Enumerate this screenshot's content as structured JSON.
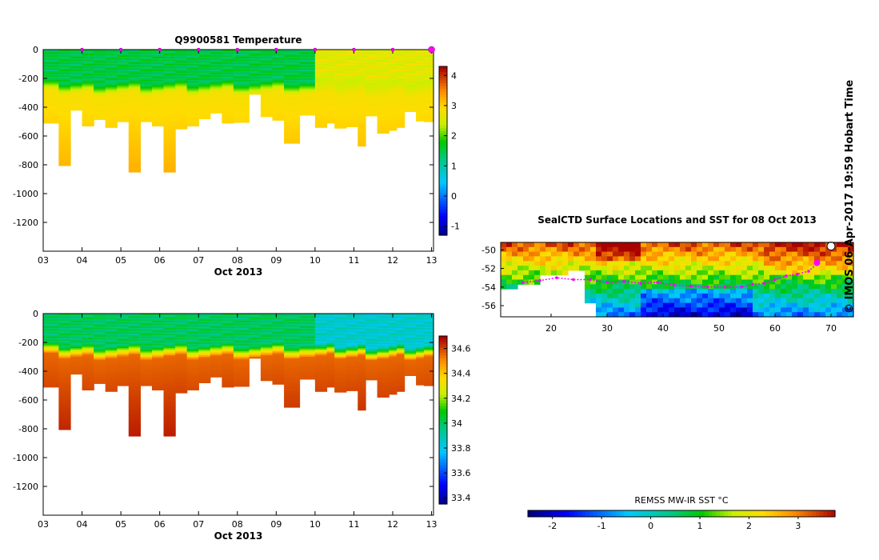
{
  "credit": "©  IMOS 06-Apr-2017 19:59 Hobart Time",
  "chart_data": [
    {
      "id": "temperature",
      "type": "heatmap",
      "title": "Q9900581  Temperature",
      "xlabel": "Oct 2013",
      "x_ticks": [
        "03",
        "04",
        "05",
        "06",
        "07",
        "08",
        "09",
        "10",
        "11",
        "12",
        "13"
      ],
      "y_ticks": [
        "0",
        "-200",
        "-400",
        "-600",
        "-800",
        "-1000",
        "-1200"
      ],
      "xlim": [
        3,
        13.05
      ],
      "ylim": [
        -1400,
        0
      ],
      "colorbar": {
        "ticks": [
          "4",
          "3",
          "2",
          "1",
          "0",
          "-1"
        ],
        "range": [
          -1.3,
          4.3
        ]
      },
      "profile_days": [
        3.0,
        3.4,
        3.7,
        4.0,
        4.3,
        4.6,
        4.9,
        5.2,
        5.5,
        5.8,
        6.1,
        6.4,
        6.7,
        7.0,
        7.3,
        7.6,
        7.9,
        8.3,
        8.6,
        8.9,
        9.2,
        9.6,
        10.0,
        10.3,
        10.5,
        10.8,
        11.1,
        11.3,
        11.6,
        11.9,
        12.1,
        12.3,
        12.6,
        12.8
      ],
      "profile_max_depth": [
        510,
        805,
        420,
        530,
        485,
        540,
        500,
        850,
        500,
        530,
        850,
        550,
        530,
        480,
        440,
        510,
        505,
        310,
        465,
        490,
        650,
        455,
        540,
        510,
        545,
        535,
        670,
        460,
        580,
        560,
        540,
        430,
        495,
        500
      ],
      "surface_markers_days": [
        4.0,
        5.0,
        6.0,
        7.0,
        8.0,
        9.0,
        10.0,
        11.0,
        12.0,
        13.0
      ],
      "surface_value": 1.3,
      "late_surface_value": 2.4,
      "deep_value": 2.8
    },
    {
      "id": "salinity",
      "type": "heatmap",
      "title": "",
      "xlabel": "Oct 2013",
      "x_ticks": [
        "03",
        "04",
        "05",
        "06",
        "07",
        "08",
        "09",
        "10",
        "11",
        "12",
        "13"
      ],
      "y_ticks": [
        "0",
        "-200",
        "-400",
        "-600",
        "-800",
        "-1000",
        "-1200"
      ],
      "xlim": [
        3,
        13.05
      ],
      "ylim": [
        -1400,
        0
      ],
      "colorbar": {
        "ticks": [
          "34.6",
          "34.4",
          "34.2",
          "34",
          "33.8",
          "33.6",
          "33.4"
        ],
        "range": [
          33.35,
          34.7
        ]
      },
      "profile_days": [
        3.0,
        3.4,
        3.7,
        4.0,
        4.3,
        4.6,
        4.9,
        5.2,
        5.5,
        5.8,
        6.1,
        6.4,
        6.7,
        7.0,
        7.3,
        7.6,
        7.9,
        8.3,
        8.6,
        8.9,
        9.2,
        9.6,
        10.0,
        10.3,
        10.5,
        10.8,
        11.1,
        11.3,
        11.6,
        11.9,
        12.1,
        12.3,
        12.6,
        12.8
      ],
      "profile_max_depth": [
        510,
        805,
        420,
        530,
        485,
        540,
        500,
        850,
        500,
        530,
        850,
        550,
        530,
        480,
        440,
        510,
        505,
        310,
        465,
        490,
        650,
        455,
        540,
        510,
        545,
        535,
        670,
        460,
        580,
        560,
        540,
        430,
        495,
        500
      ],
      "surface_value": 33.95,
      "late_surface_value": 33.8,
      "deep_value": 34.55
    },
    {
      "id": "sst_map",
      "type": "heatmap",
      "title": "SealCTD Surface Locations and SST for 08 Oct 2013",
      "x_ticks": [
        "20",
        "30",
        "40",
        "50",
        "60",
        "70"
      ],
      "y_ticks": [
        "-50",
        "-52",
        "-54",
        "-56"
      ],
      "xlim": [
        11,
        74
      ],
      "ylim": [
        -57.2,
        -49.2
      ],
      "colorbar": {
        "label": "REMSS MW-IR SST °C",
        "ticks": [
          "-2",
          "-1",
          "0",
          "1",
          "2",
          "3"
        ],
        "range": [
          -2.5,
          3.75
        ]
      },
      "track": [
        [
          15,
          -53.5
        ],
        [
          18,
          -53.3
        ],
        [
          21,
          -53
        ],
        [
          24,
          -53.2
        ],
        [
          27,
          -53.2
        ],
        [
          30,
          -53.5
        ],
        [
          33,
          -53.4
        ],
        [
          36,
          -53.6
        ],
        [
          39,
          -53.5
        ],
        [
          42,
          -53.8
        ],
        [
          45,
          -53.9
        ],
        [
          48,
          -54.0
        ],
        [
          51,
          -54.0
        ],
        [
          54,
          -54.0
        ],
        [
          56,
          -53.7
        ],
        [
          58,
          -53.6
        ],
        [
          60,
          -53.2
        ],
        [
          62,
          -52.8
        ],
        [
          64,
          -52.6
        ],
        [
          66,
          -52.3
        ],
        [
          67.5,
          -51.5
        ]
      ],
      "track_color": "#ff00ff",
      "current_position": [
        67.5,
        -51.4
      ]
    }
  ]
}
